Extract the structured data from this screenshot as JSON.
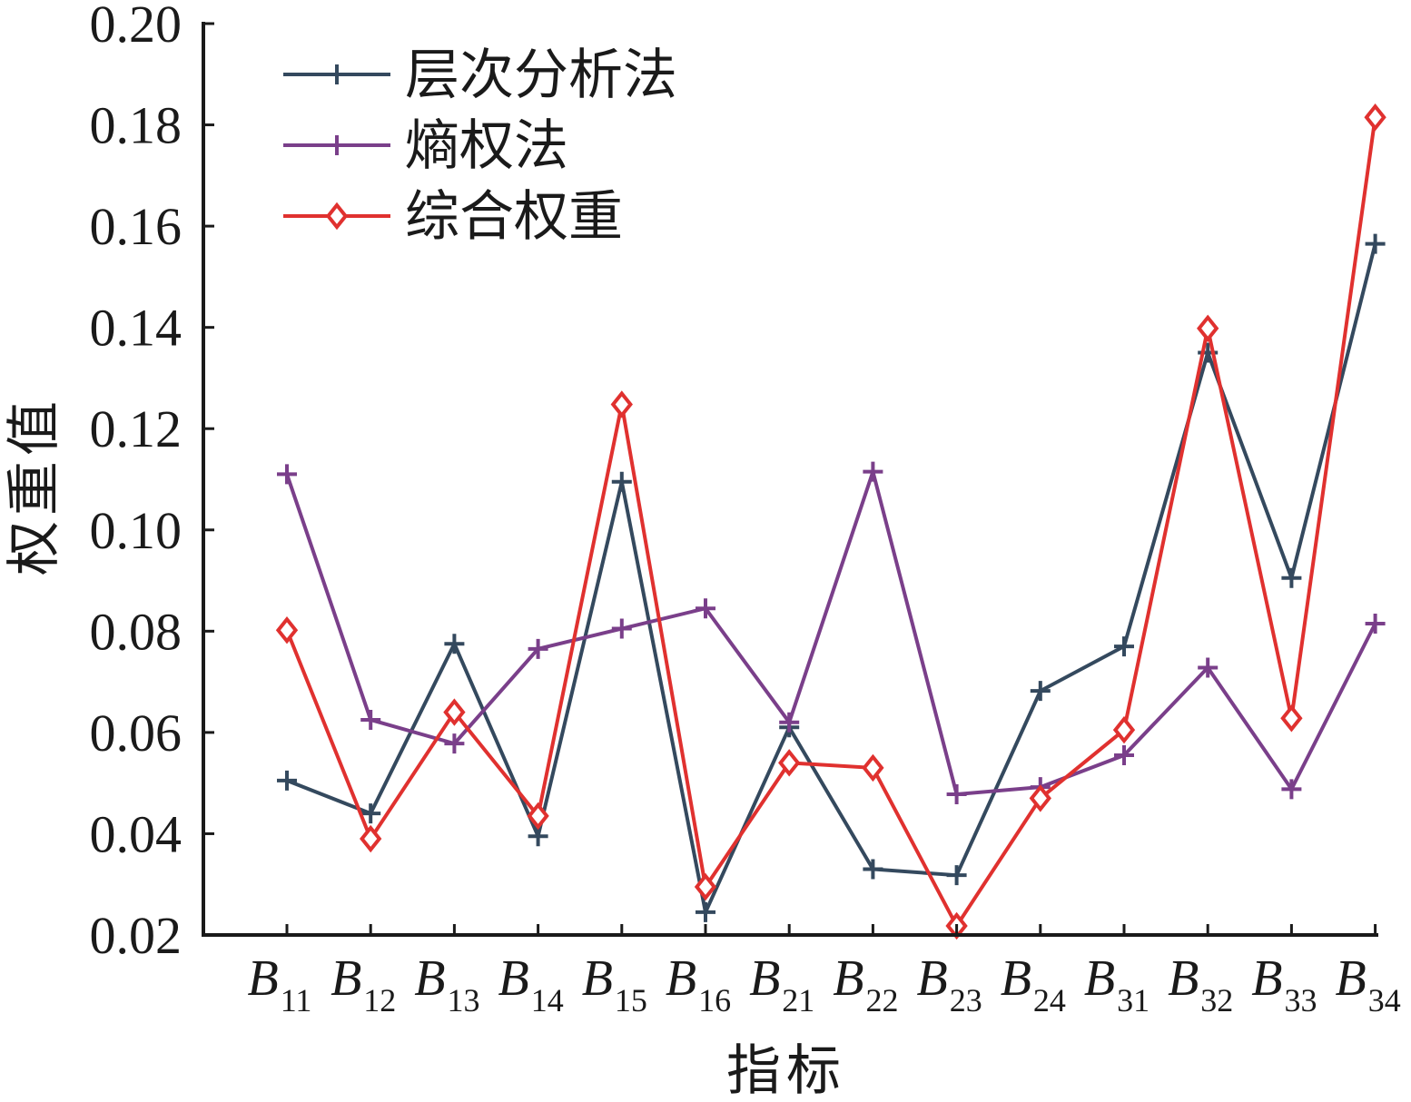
{
  "chart_data": {
    "type": "line",
    "title": "",
    "xlabel": "指标",
    "ylabel": "权重值",
    "categories": [
      {
        "main": "B",
        "sub": "11"
      },
      {
        "main": "B",
        "sub": "12"
      },
      {
        "main": "B",
        "sub": "13"
      },
      {
        "main": "B",
        "sub": "14"
      },
      {
        "main": "B",
        "sub": "15"
      },
      {
        "main": "B",
        "sub": "16"
      },
      {
        "main": "B",
        "sub": "21"
      },
      {
        "main": "B",
        "sub": "22"
      },
      {
        "main": "B",
        "sub": "23"
      },
      {
        "main": "B",
        "sub": "24"
      },
      {
        "main": "B",
        "sub": "31"
      },
      {
        "main": "B",
        "sub": "32"
      },
      {
        "main": "B",
        "sub": "33"
      },
      {
        "main": "B",
        "sub": "34"
      }
    ],
    "ylim": [
      0.02,
      0.2
    ],
    "yticks": [
      "0.02",
      "0.04",
      "0.06",
      "0.08",
      "0.10",
      "0.12",
      "0.14",
      "0.16",
      "0.18",
      "0.20"
    ],
    "grid": false,
    "legend_position": "top-left",
    "series": [
      {
        "name": "层次分析法",
        "color": "#34495e",
        "marker": "plus",
        "values": [
          0.0505,
          0.044,
          0.0775,
          0.0395,
          0.1095,
          0.0245,
          0.061,
          0.033,
          0.0318,
          0.0682,
          0.077,
          0.135,
          0.0905,
          0.1565
        ]
      },
      {
        "name": "熵权法",
        "color": "#7a3f8a",
        "marker": "plus",
        "values": [
          0.111,
          0.0625,
          0.0578,
          0.0765,
          0.0805,
          0.0845,
          0.062,
          0.1115,
          0.0478,
          0.0492,
          0.0555,
          0.0728,
          0.0488,
          0.0815
        ]
      },
      {
        "name": "综合权重",
        "color": "#e0312f",
        "marker": "diamond",
        "values": [
          0.0802,
          0.039,
          0.064,
          0.0435,
          0.1248,
          0.0295,
          0.054,
          0.053,
          0.0218,
          0.047,
          0.0605,
          0.1398,
          0.0628,
          0.1815
        ]
      }
    ]
  }
}
